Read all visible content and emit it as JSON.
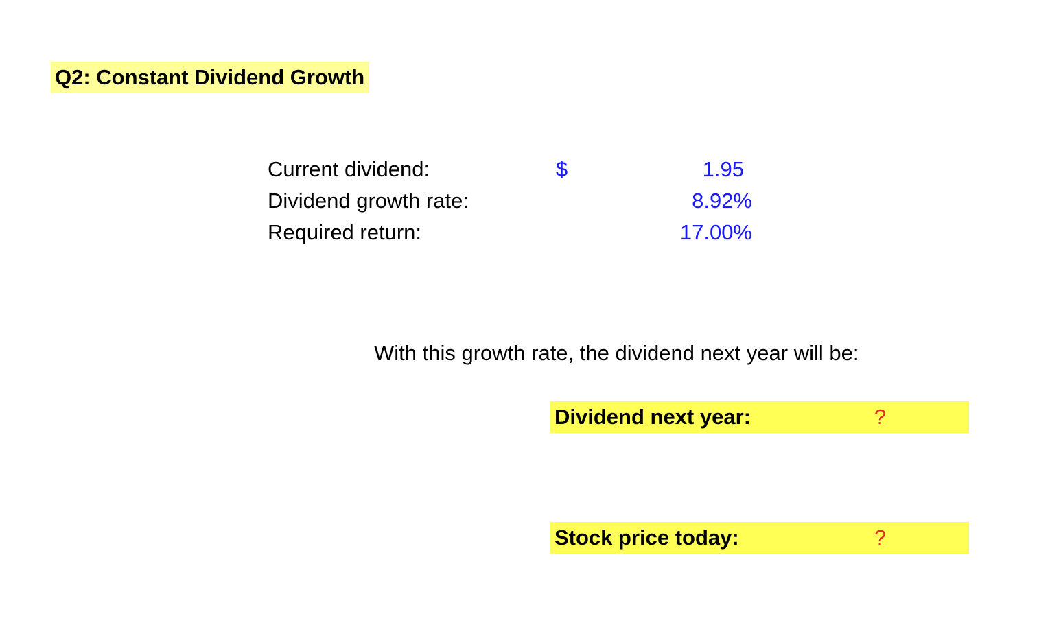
{
  "title": "Q2: Constant Dividend Growth",
  "inputs": {
    "current_dividend_label": "Current dividend:",
    "currency_symbol": "$",
    "current_dividend_value": "1.95",
    "growth_rate_label": "Dividend growth rate:",
    "growth_rate_value": "8.92%",
    "required_return_label": "Required return:",
    "required_return_value": "17.00%"
  },
  "sentence": "With this growth rate, the dividend next year will be:",
  "results": {
    "dividend_next_year_label": "Dividend next year:",
    "dividend_next_year_value": "?",
    "stock_price_label": "Stock price today:",
    "stock_price_value": "?"
  },
  "colors": {
    "title_highlight": "#ffff99",
    "result_highlight": "#ffff55",
    "input_blue": "#1a1aff",
    "question_red": "#e8281e"
  }
}
